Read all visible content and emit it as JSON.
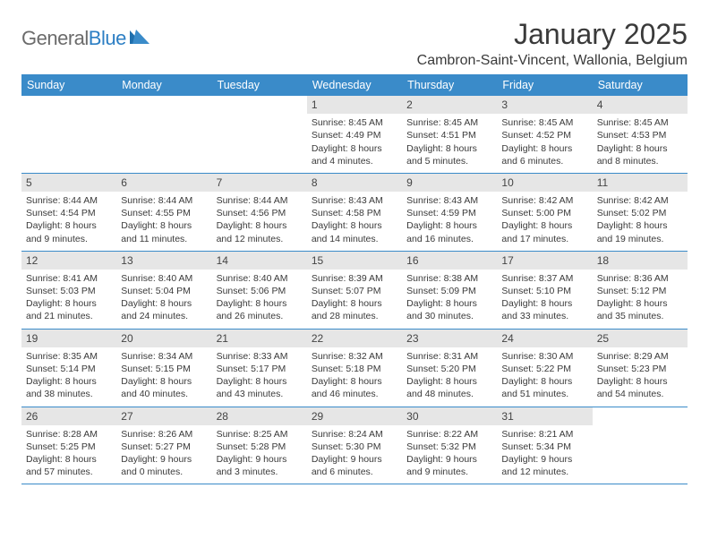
{
  "logo": {
    "text1": "General",
    "text2": "Blue"
  },
  "title": "January 2025",
  "location": "Cambron-Saint-Vincent, Wallonia, Belgium",
  "colors": {
    "header_bg": "#3a8bc9",
    "header_text": "#ffffff",
    "daynum_bg": "#e6e6e6",
    "border": "#3a8bc9",
    "text": "#3a3a3a",
    "logo_gray": "#6b6b6b",
    "logo_blue": "#2d7fc4"
  },
  "day_labels": [
    "Sunday",
    "Monday",
    "Tuesday",
    "Wednesday",
    "Thursday",
    "Friday",
    "Saturday"
  ],
  "weeks": [
    [
      null,
      null,
      null,
      {
        "n": "1",
        "sunrise": "Sunrise: 8:45 AM",
        "sunset": "Sunset: 4:49 PM",
        "dl1": "Daylight: 8 hours",
        "dl2": "and 4 minutes."
      },
      {
        "n": "2",
        "sunrise": "Sunrise: 8:45 AM",
        "sunset": "Sunset: 4:51 PM",
        "dl1": "Daylight: 8 hours",
        "dl2": "and 5 minutes."
      },
      {
        "n": "3",
        "sunrise": "Sunrise: 8:45 AM",
        "sunset": "Sunset: 4:52 PM",
        "dl1": "Daylight: 8 hours",
        "dl2": "and 6 minutes."
      },
      {
        "n": "4",
        "sunrise": "Sunrise: 8:45 AM",
        "sunset": "Sunset: 4:53 PM",
        "dl1": "Daylight: 8 hours",
        "dl2": "and 8 minutes."
      }
    ],
    [
      {
        "n": "5",
        "sunrise": "Sunrise: 8:44 AM",
        "sunset": "Sunset: 4:54 PM",
        "dl1": "Daylight: 8 hours",
        "dl2": "and 9 minutes."
      },
      {
        "n": "6",
        "sunrise": "Sunrise: 8:44 AM",
        "sunset": "Sunset: 4:55 PM",
        "dl1": "Daylight: 8 hours",
        "dl2": "and 11 minutes."
      },
      {
        "n": "7",
        "sunrise": "Sunrise: 8:44 AM",
        "sunset": "Sunset: 4:56 PM",
        "dl1": "Daylight: 8 hours",
        "dl2": "and 12 minutes."
      },
      {
        "n": "8",
        "sunrise": "Sunrise: 8:43 AM",
        "sunset": "Sunset: 4:58 PM",
        "dl1": "Daylight: 8 hours",
        "dl2": "and 14 minutes."
      },
      {
        "n": "9",
        "sunrise": "Sunrise: 8:43 AM",
        "sunset": "Sunset: 4:59 PM",
        "dl1": "Daylight: 8 hours",
        "dl2": "and 16 minutes."
      },
      {
        "n": "10",
        "sunrise": "Sunrise: 8:42 AM",
        "sunset": "Sunset: 5:00 PM",
        "dl1": "Daylight: 8 hours",
        "dl2": "and 17 minutes."
      },
      {
        "n": "11",
        "sunrise": "Sunrise: 8:42 AM",
        "sunset": "Sunset: 5:02 PM",
        "dl1": "Daylight: 8 hours",
        "dl2": "and 19 minutes."
      }
    ],
    [
      {
        "n": "12",
        "sunrise": "Sunrise: 8:41 AM",
        "sunset": "Sunset: 5:03 PM",
        "dl1": "Daylight: 8 hours",
        "dl2": "and 21 minutes."
      },
      {
        "n": "13",
        "sunrise": "Sunrise: 8:40 AM",
        "sunset": "Sunset: 5:04 PM",
        "dl1": "Daylight: 8 hours",
        "dl2": "and 24 minutes."
      },
      {
        "n": "14",
        "sunrise": "Sunrise: 8:40 AM",
        "sunset": "Sunset: 5:06 PM",
        "dl1": "Daylight: 8 hours",
        "dl2": "and 26 minutes."
      },
      {
        "n": "15",
        "sunrise": "Sunrise: 8:39 AM",
        "sunset": "Sunset: 5:07 PM",
        "dl1": "Daylight: 8 hours",
        "dl2": "and 28 minutes."
      },
      {
        "n": "16",
        "sunrise": "Sunrise: 8:38 AM",
        "sunset": "Sunset: 5:09 PM",
        "dl1": "Daylight: 8 hours",
        "dl2": "and 30 minutes."
      },
      {
        "n": "17",
        "sunrise": "Sunrise: 8:37 AM",
        "sunset": "Sunset: 5:10 PM",
        "dl1": "Daylight: 8 hours",
        "dl2": "and 33 minutes."
      },
      {
        "n": "18",
        "sunrise": "Sunrise: 8:36 AM",
        "sunset": "Sunset: 5:12 PM",
        "dl1": "Daylight: 8 hours",
        "dl2": "and 35 minutes."
      }
    ],
    [
      {
        "n": "19",
        "sunrise": "Sunrise: 8:35 AM",
        "sunset": "Sunset: 5:14 PM",
        "dl1": "Daylight: 8 hours",
        "dl2": "and 38 minutes."
      },
      {
        "n": "20",
        "sunrise": "Sunrise: 8:34 AM",
        "sunset": "Sunset: 5:15 PM",
        "dl1": "Daylight: 8 hours",
        "dl2": "and 40 minutes."
      },
      {
        "n": "21",
        "sunrise": "Sunrise: 8:33 AM",
        "sunset": "Sunset: 5:17 PM",
        "dl1": "Daylight: 8 hours",
        "dl2": "and 43 minutes."
      },
      {
        "n": "22",
        "sunrise": "Sunrise: 8:32 AM",
        "sunset": "Sunset: 5:18 PM",
        "dl1": "Daylight: 8 hours",
        "dl2": "and 46 minutes."
      },
      {
        "n": "23",
        "sunrise": "Sunrise: 8:31 AM",
        "sunset": "Sunset: 5:20 PM",
        "dl1": "Daylight: 8 hours",
        "dl2": "and 48 minutes."
      },
      {
        "n": "24",
        "sunrise": "Sunrise: 8:30 AM",
        "sunset": "Sunset: 5:22 PM",
        "dl1": "Daylight: 8 hours",
        "dl2": "and 51 minutes."
      },
      {
        "n": "25",
        "sunrise": "Sunrise: 8:29 AM",
        "sunset": "Sunset: 5:23 PM",
        "dl1": "Daylight: 8 hours",
        "dl2": "and 54 minutes."
      }
    ],
    [
      {
        "n": "26",
        "sunrise": "Sunrise: 8:28 AM",
        "sunset": "Sunset: 5:25 PM",
        "dl1": "Daylight: 8 hours",
        "dl2": "and 57 minutes."
      },
      {
        "n": "27",
        "sunrise": "Sunrise: 8:26 AM",
        "sunset": "Sunset: 5:27 PM",
        "dl1": "Daylight: 9 hours",
        "dl2": "and 0 minutes."
      },
      {
        "n": "28",
        "sunrise": "Sunrise: 8:25 AM",
        "sunset": "Sunset: 5:28 PM",
        "dl1": "Daylight: 9 hours",
        "dl2": "and 3 minutes."
      },
      {
        "n": "29",
        "sunrise": "Sunrise: 8:24 AM",
        "sunset": "Sunset: 5:30 PM",
        "dl1": "Daylight: 9 hours",
        "dl2": "and 6 minutes."
      },
      {
        "n": "30",
        "sunrise": "Sunrise: 8:22 AM",
        "sunset": "Sunset: 5:32 PM",
        "dl1": "Daylight: 9 hours",
        "dl2": "and 9 minutes."
      },
      {
        "n": "31",
        "sunrise": "Sunrise: 8:21 AM",
        "sunset": "Sunset: 5:34 PM",
        "dl1": "Daylight: 9 hours",
        "dl2": "and 12 minutes."
      },
      null
    ]
  ]
}
